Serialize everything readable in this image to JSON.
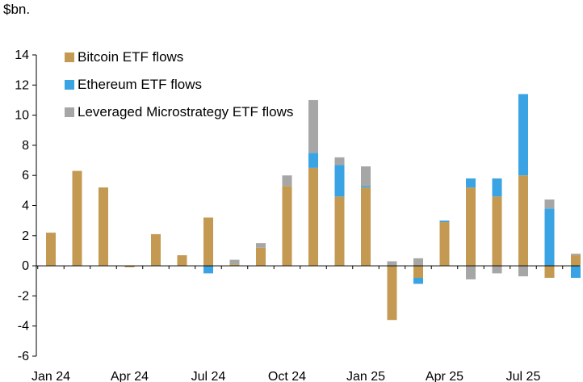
{
  "chart_data": {
    "type": "bar",
    "stacked": true,
    "unit_label": "$bn.",
    "categories": [
      "Jan 24",
      "Feb 24",
      "Mar 24",
      "Apr 24",
      "May 24",
      "Jun 24",
      "Jul 24",
      "Aug 24",
      "Sep 24",
      "Oct 24",
      "Nov 24",
      "Dec 24",
      "Jan 25",
      "Feb 25",
      "Mar 25",
      "Apr 25",
      "May 25",
      "Jun 25",
      "Jul 25",
      "Aug 25",
      "Sep 25"
    ],
    "x_tick_labels": [
      "Jan 24",
      "Apr 24",
      "Jul 24",
      "Oct 24",
      "Jan 25",
      "Apr 25",
      "Jul 25"
    ],
    "series": [
      {
        "name": "Bitcoin ETF flows",
        "color": "#c49a52",
        "values": [
          2.2,
          6.3,
          5.2,
          -0.1,
          2.1,
          0.7,
          3.2,
          0.1,
          1.2,
          5.3,
          6.5,
          4.6,
          5.2,
          -3.6,
          -0.8,
          2.9,
          5.2,
          4.6,
          6.0,
          -0.8,
          0.7
        ]
      },
      {
        "name": "Ethereum ETF flows",
        "color": "#3aa3e3",
        "values": [
          0,
          0,
          0,
          0,
          0,
          0,
          -0.5,
          0,
          0,
          0,
          1.0,
          2.1,
          0.1,
          0,
          -0.4,
          0.1,
          0.6,
          1.2,
          5.4,
          3.8,
          -0.8
        ]
      },
      {
        "name": "Leveraged Microstrategy ETF flows",
        "color": "#a6a6a6",
        "values": [
          0,
          0,
          0,
          0,
          0,
          0,
          0,
          0.3,
          0.3,
          0.7,
          3.5,
          0.5,
          1.3,
          0.3,
          0.5,
          0,
          -0.9,
          -0.5,
          -0.7,
          0.6,
          0.1
        ]
      }
    ],
    "ylim": [
      -6,
      14
    ],
    "yticks": [
      14,
      12,
      10,
      8,
      6,
      4,
      2,
      0,
      -2,
      -4,
      -6
    ],
    "legend_position": "top-left",
    "grid": false
  }
}
